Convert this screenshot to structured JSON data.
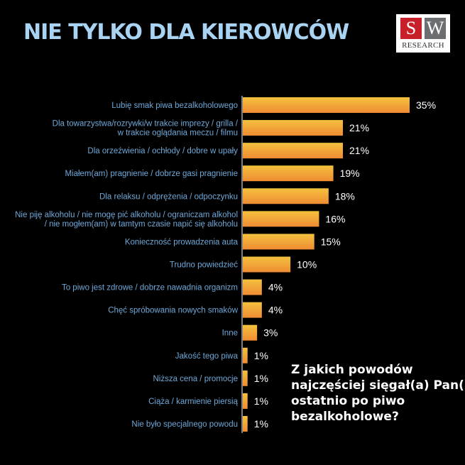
{
  "title": "NIE TYLKO DLA KIEROWCÓW",
  "logo": {
    "letter_s": "S",
    "letter_w": "W",
    "text": "RESEARCH",
    "colors": {
      "s_box": "#c8202a",
      "w_box": "#6d6e71"
    }
  },
  "question": {
    "lines": [
      "Z jakich powodów",
      "najczęściej sięgał(a) Pan(i)",
      "ostatnio po piwo",
      "bezalkoholowe?"
    ]
  },
  "colors": {
    "background": "#000000",
    "title": "#a9d3f2",
    "category_label": "#6fa8d8",
    "bar_top": "#f4c13e",
    "bar_bottom": "#ef8c33"
  },
  "chart_data": {
    "type": "bar",
    "orientation": "horizontal",
    "unit": "%",
    "categories": [
      [
        "Lubię smak piwa bezalkoholowego"
      ],
      [
        "Dla towarzystwa/rozrywki/w trakcie imprezy / grilla /",
        "w trakcie oglądania meczu / filmu"
      ],
      [
        "Dla orzeźwienia / ochłody / dobre w upały"
      ],
      [
        "Miałem(am) pragnienie / dobrze gasi pragnienie"
      ],
      [
        "Dla relaksu / odprężenia / odpoczynku"
      ],
      [
        "Nie piję alkoholu / nie mogę pić alkoholu / ograniczam alkohol",
        "/ nie mogłem(am) w tamtym czasie napić się alkoholu"
      ],
      [
        "Konieczność prowadzenia auta"
      ],
      [
        "Trudno powiedzieć"
      ],
      [
        "To piwo jest zdrowe / dobrze nawadnia organizm"
      ],
      [
        "Chęć spróbowania nowych smaków"
      ],
      [
        "Inne"
      ],
      [
        "Jakość tego piwa"
      ],
      [
        "Niższa cena / promocje"
      ],
      [
        "Ciąża / karmienie piersią"
      ],
      [
        "Nie było specjalnego powodu"
      ]
    ],
    "values": [
      35,
      21,
      21,
      19,
      18,
      16,
      15,
      10,
      4,
      4,
      3,
      1,
      1,
      1,
      1
    ],
    "value_labels": [
      "35%",
      "21%",
      "21%",
      "19%",
      "18%",
      "16%",
      "15%",
      "10%",
      "4%",
      "4%",
      "3%",
      "1%",
      "1%",
      "1%",
      "1%"
    ],
    "xlim": [
      0,
      35
    ],
    "grid": false,
    "legend": "none"
  }
}
